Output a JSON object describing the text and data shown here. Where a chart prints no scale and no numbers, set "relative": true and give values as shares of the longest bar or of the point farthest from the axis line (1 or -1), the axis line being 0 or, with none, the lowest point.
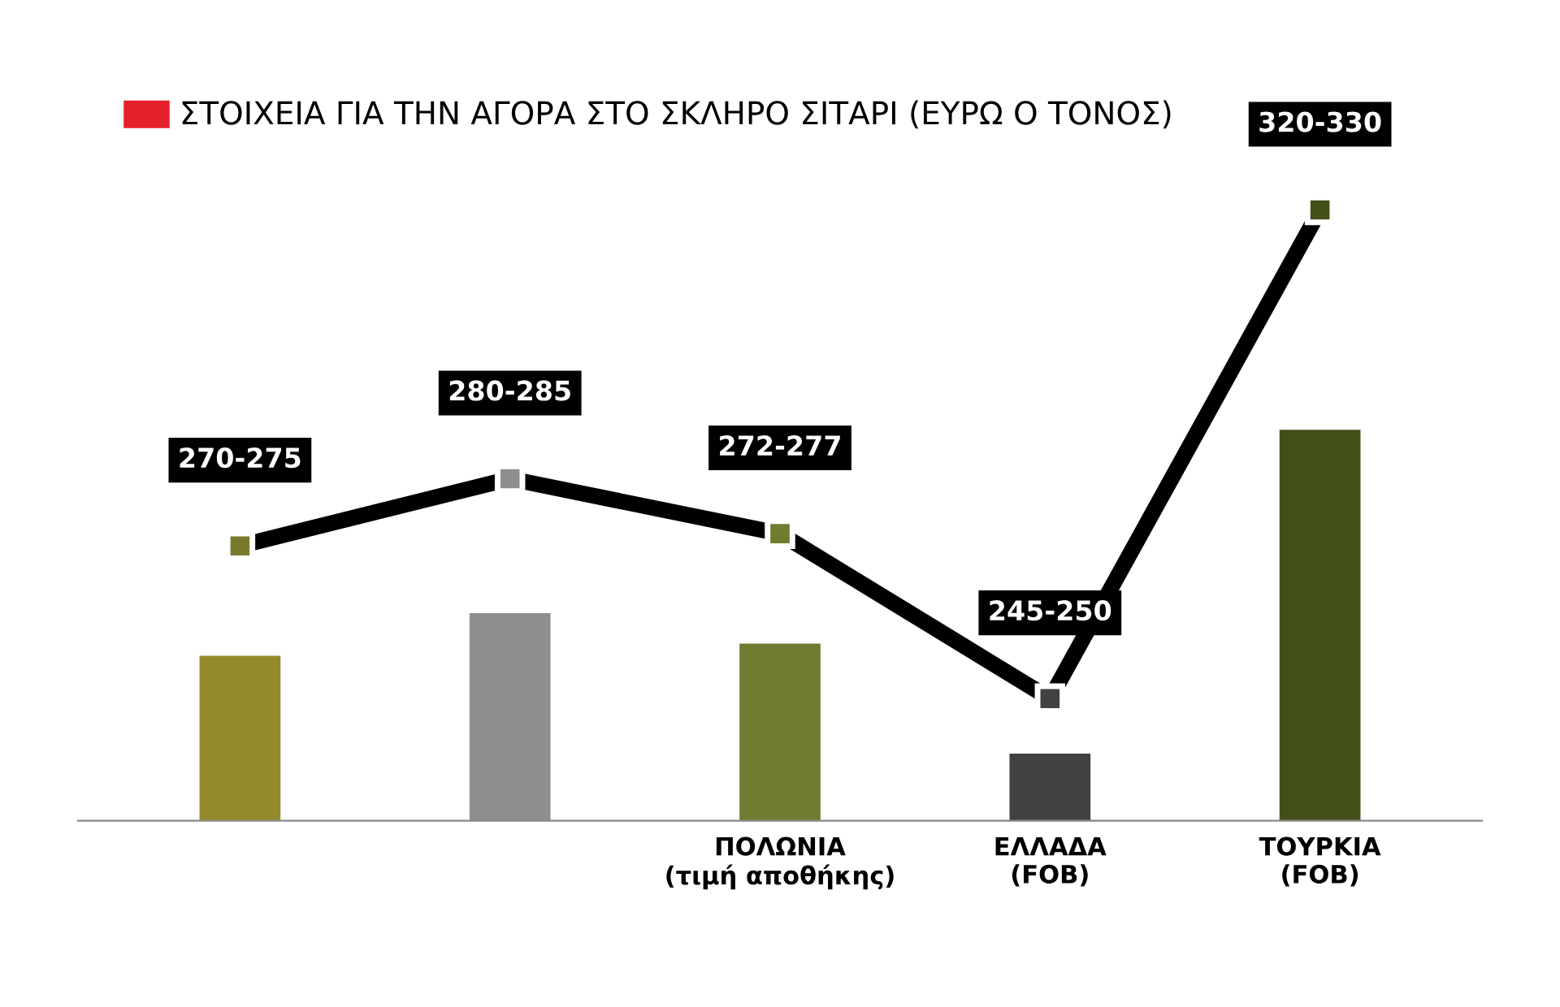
{
  "chart_data": {
    "type": "bar",
    "title": "ΣΤΟΙΧΕΙΑ ΓΙΑ ΤΗΝ ΑΓΟΡΑ ΣΤΟ ΣΚΛΗΡΟ ΣΙΤΑΡΙ (ΕΥΡΩ Ο ΤΟΝΟΣ)",
    "relative": true,
    "categories": [
      null,
      null,
      "ΠΟΛΩΝΙΑ\n(τιμή αποθήκης)",
      "ΕΛΛΑΔΑ\n(FOB)",
      "ΤΟΥΡΚΙΑ\n(FOB)"
    ],
    "series": [
      {
        "colors": [
          "#948a2c",
          "#8e8e90",
          "#6f7d30",
          "#414141",
          "#434f19"
        ],
        "values": [
          0.27,
          0.34,
          0.29,
          0.11,
          0.64
        ]
      },
      {
        "type": "line",
        "color": "#000000",
        "marker": "square",
        "colors": [
          "#7a7a2c",
          "#8e8e90",
          "#6f7d30",
          "#414141",
          "#434f19"
        ],
        "values": [
          0.45,
          0.56,
          0.47,
          0.2,
          1.0
        ]
      }
    ],
    "annotations": [
      "270-275",
      "280-285",
      "272-277",
      "245-250",
      "320-330"
    ]
  }
}
